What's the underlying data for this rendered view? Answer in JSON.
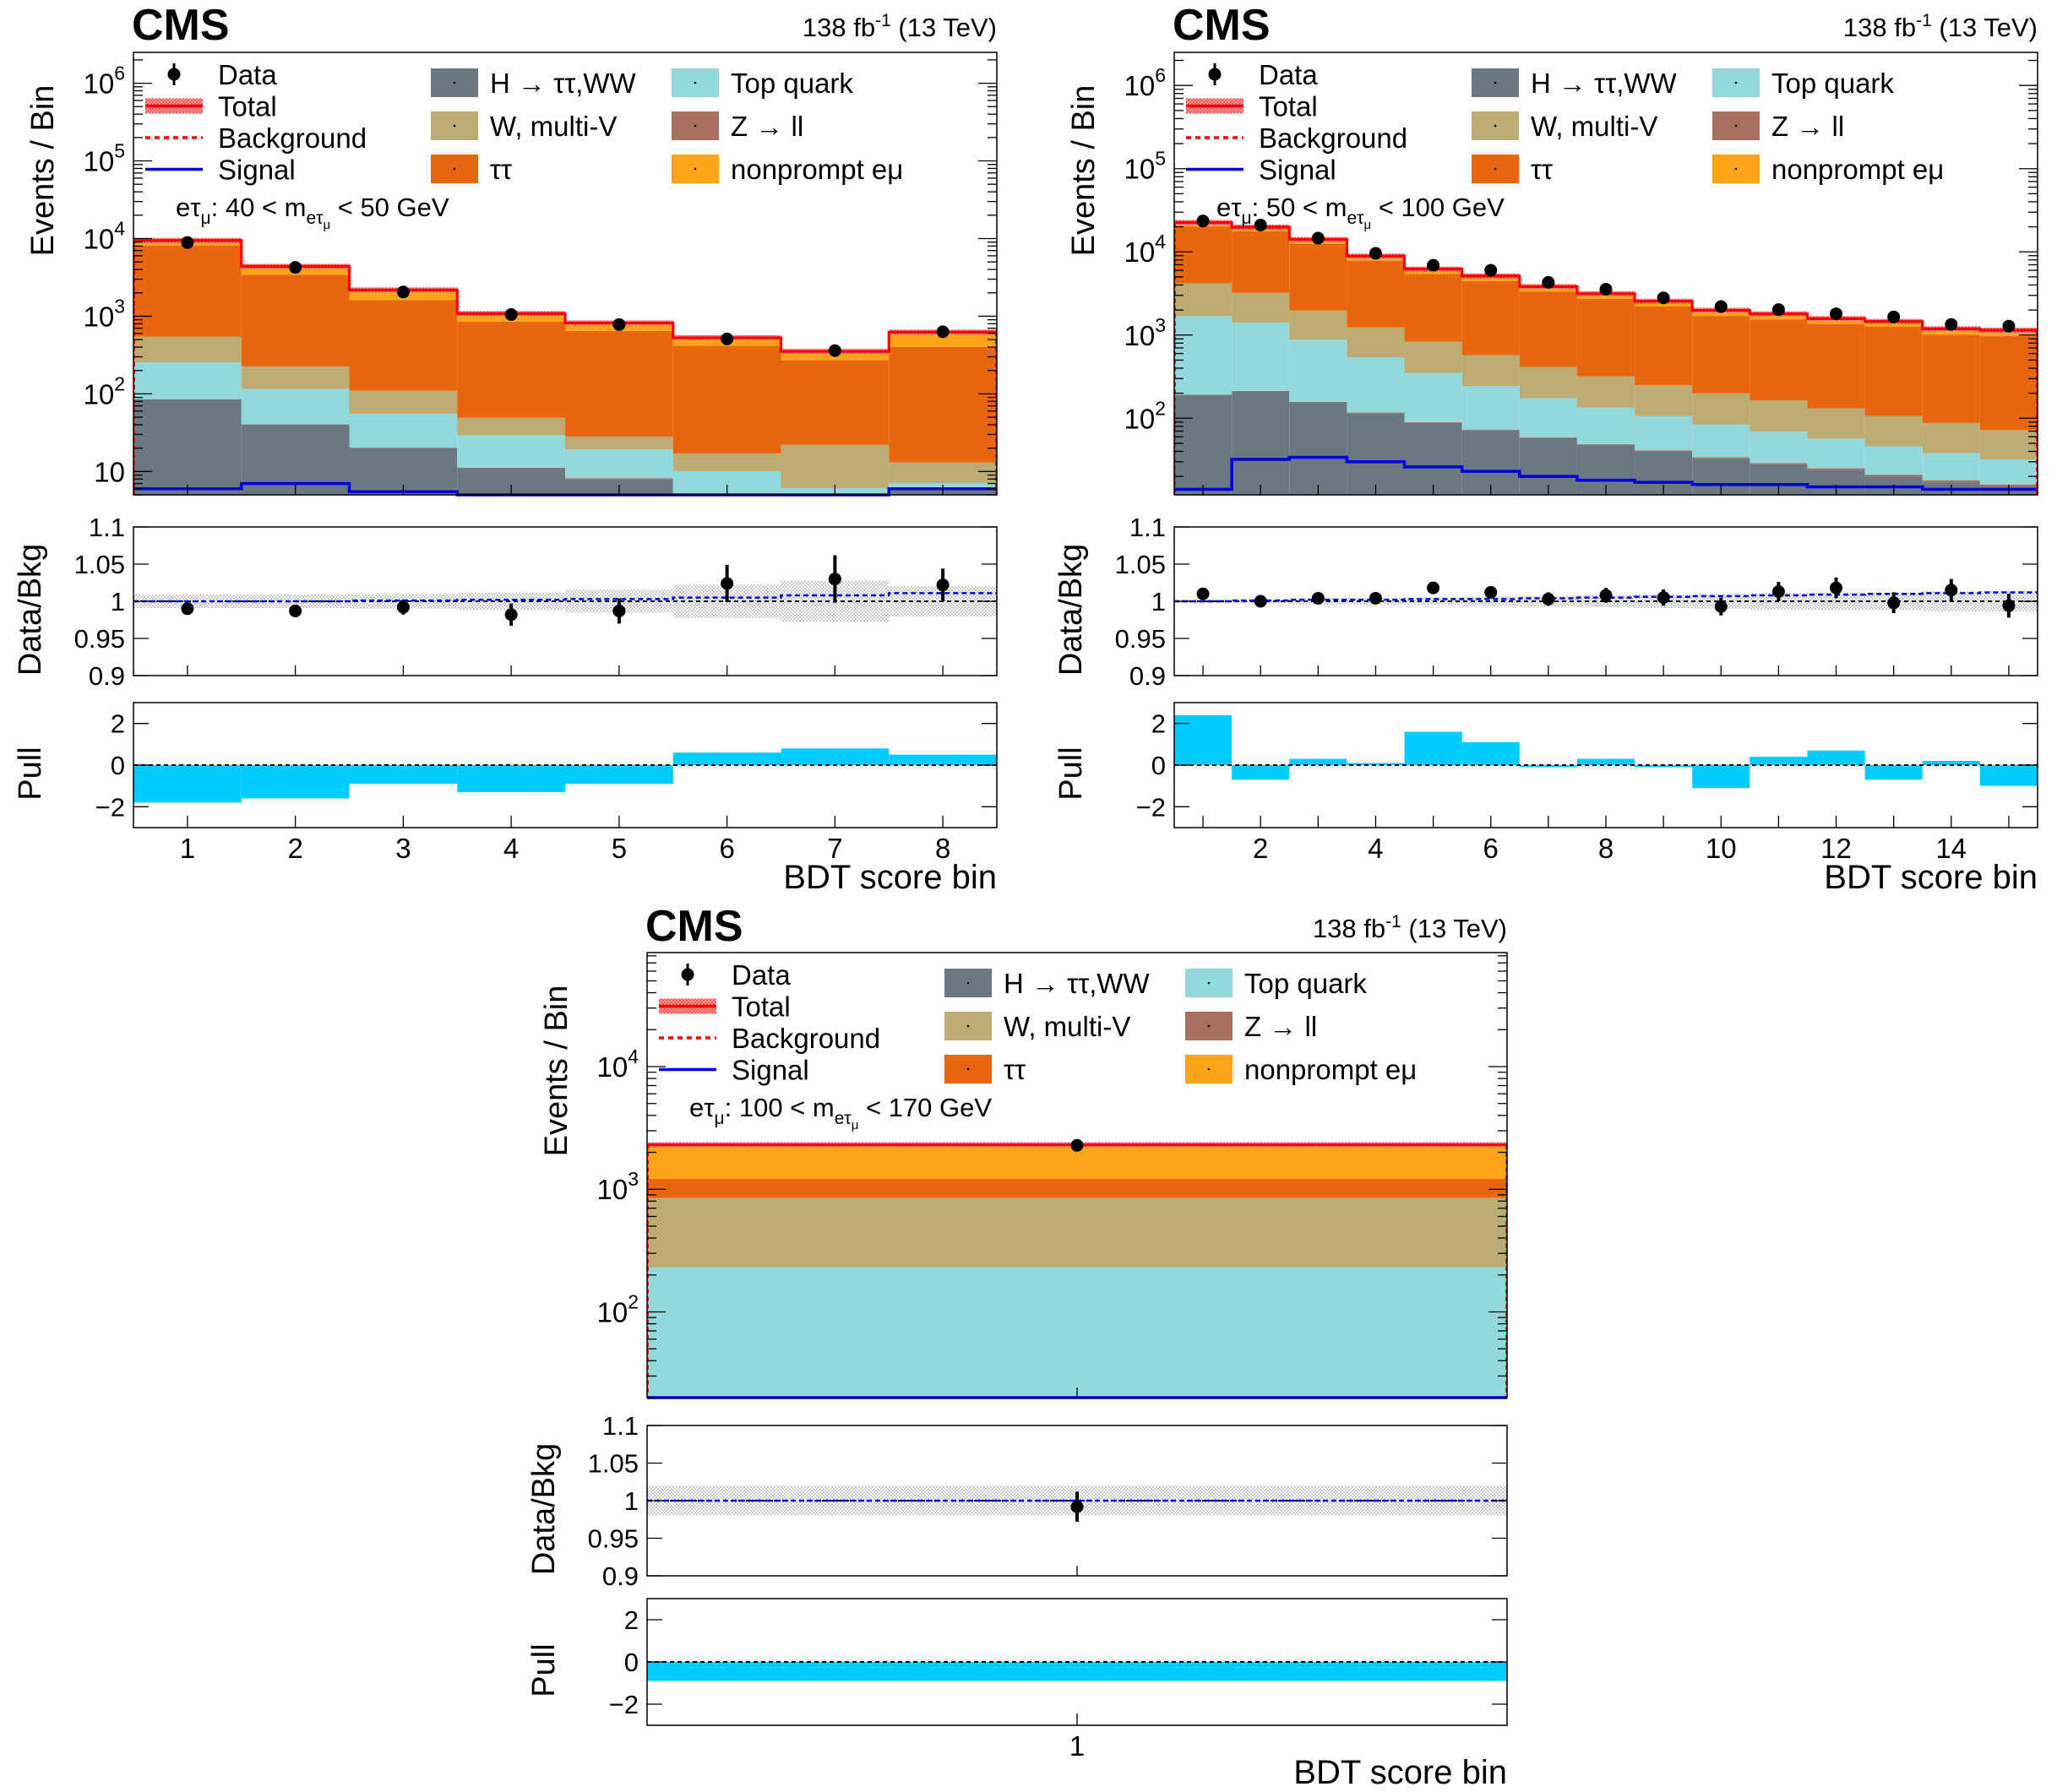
{
  "figure": {
    "experiment": "CMS",
    "lumi": "138 fb",
    "lumi_exp": "-1",
    "energy": " (13 TeV)"
  },
  "legend": {
    "left": [
      {
        "key": "data",
        "label": "Data"
      },
      {
        "key": "total",
        "label": "Total"
      },
      {
        "key": "background",
        "label": "Background"
      },
      {
        "key": "signal",
        "label": "Signal"
      }
    ],
    "mid": [
      {
        "key": "htt",
        "label": "H → ττ,WW"
      },
      {
        "key": "wmv",
        "label": "W, multi-V"
      },
      {
        "key": "tt",
        "label": "ττ"
      }
    ],
    "right": [
      {
        "key": "top",
        "label": "Top quark"
      },
      {
        "key": "zll",
        "label": "Z → ll"
      },
      {
        "key": "np",
        "label": "nonprompt eμ"
      }
    ]
  },
  "colors": {
    "htt": "#6b7781",
    "wmv": "#bcab72",
    "tt": "#e8670e",
    "top": "#93d9dc",
    "zll": "#a96f5f",
    "np": "#fea417",
    "total": "#ff0000",
    "signal": "#0000dd",
    "pull": "#00ccff",
    "unc_band": "#c8c8c8"
  },
  "chart_data": [
    {
      "type": "bar",
      "stacked": true,
      "category": "eτμ: 40 < m(eτμ) < 50 GeV",
      "category_text": {
        "pre": "eτ",
        "sub1": "μ",
        "mid": ": 40 < m",
        "sub2": "eτ",
        "sub3": "μ",
        "post": " < 50 GeV"
      },
      "xlabel": "BDT score bin",
      "ylabel_main": "Events / Bin",
      "ylabel_ratio": "Data/Bkg",
      "ylabel_pull": "Pull",
      "x_bins": [
        1,
        2,
        3,
        4,
        5,
        6,
        7,
        8
      ],
      "x_ticks": [
        1,
        2,
        3,
        4,
        5,
        6,
        7,
        8
      ],
      "ylim_main": [
        5,
        2500000
      ],
      "ylog": true,
      "y_ticks_main": [
        {
          "v": 10,
          "b": "10",
          "e": ""
        },
        {
          "v": 100,
          "b": "10",
          "e": "2"
        },
        {
          "v": 1000,
          "b": "10",
          "e": "3"
        },
        {
          "v": 10000,
          "b": "10",
          "e": "4"
        },
        {
          "v": 100000,
          "b": "10",
          "e": "5"
        },
        {
          "v": 1000000,
          "b": "10",
          "e": "6"
        }
      ],
      "series": [
        {
          "key": "htt",
          "name": "H → ττ,WW",
          "values": [
            85,
            40,
            20,
            11,
            8,
            5,
            4,
            6
          ]
        },
        {
          "key": "zll",
          "name": "Z → ll",
          "values": [
            0.5,
            0.4,
            0.3,
            0.2,
            0.2,
            0.1,
            0.1,
            0.1
          ]
        },
        {
          "key": "top",
          "name": "Top quark",
          "values": [
            170,
            75,
            35,
            18,
            11,
            5,
            2,
            1
          ]
        },
        {
          "key": "wmv",
          "name": "W, multi-V",
          "values": [
            290,
            110,
            55,
            20,
            9,
            7,
            16,
            6
          ]
        },
        {
          "key": "tt",
          "name": "ττ",
          "values": [
            7600,
            3200,
            1500,
            800,
            620,
            400,
            250,
            390
          ]
        },
        {
          "key": "np",
          "name": "nonprompt eμ",
          "values": [
            1300,
            950,
            560,
            230,
            170,
            110,
            80,
            220
          ]
        }
      ],
      "data": [
        8900,
        4250,
        2050,
        1050,
        780,
        510,
        360,
        630
      ],
      "signal": [
        6,
        7,
        5.5,
        4.5,
        4,
        3.5,
        3.5,
        6
      ],
      "ratio": {
        "ylim": [
          0.9,
          1.1
        ],
        "ticks": [
          0.9,
          0.95,
          1,
          1.05,
          1.1
        ],
        "tick_labels": [
          "0.9",
          "0.95",
          "1",
          "1.05",
          "1.1"
        ],
        "values": [
          0.99,
          0.987,
          0.992,
          0.982,
          0.987,
          1.024,
          1.03,
          1.022
        ],
        "errors": [
          0.004,
          0.008,
          0.01,
          0.015,
          0.017,
          0.025,
          0.032,
          0.022
        ],
        "band": [
          0.009,
          0.009,
          0.01,
          0.012,
          0.015,
          0.022,
          0.028,
          0.02
        ],
        "signal_line": [
          1.0,
          1.0,
          1.001,
          1.002,
          1.003,
          1.005,
          1.008,
          1.011
        ]
      },
      "pull": {
        "ylim": [
          -3,
          3
        ],
        "ticks": [
          -2,
          0,
          2
        ],
        "tick_labels": [
          "−2",
          "0",
          "2"
        ],
        "values": [
          -1.8,
          -1.6,
          -0.9,
          -1.3,
          -0.9,
          0.6,
          0.8,
          0.5
        ]
      }
    },
    {
      "type": "bar",
      "stacked": true,
      "category": "eτμ: 50 < m(eτμ) < 100 GeV",
      "category_text": {
        "pre": "eτ",
        "sub1": "μ",
        "mid": ": 50 < m",
        "sub2": "eτ",
        "sub3": "μ",
        "post": " < 100 GeV"
      },
      "xlabel": "BDT score bin",
      "ylabel_main": "Events / Bin",
      "ylabel_ratio": "Data/Bkg",
      "ylabel_pull": "Pull",
      "x_bins": [
        1,
        2,
        3,
        4,
        5,
        6,
        7,
        8,
        9,
        10,
        11,
        12,
        13,
        14,
        15
      ],
      "x_ticks": [
        2,
        4,
        6,
        8,
        10,
        12,
        14
      ],
      "ylim_main": [
        12,
        2500000
      ],
      "ylog": true,
      "y_ticks_main": [
        {
          "v": 100,
          "b": "10",
          "e": "2"
        },
        {
          "v": 1000,
          "b": "10",
          "e": "3"
        },
        {
          "v": 10000,
          "b": "10",
          "e": "4"
        },
        {
          "v": 100000,
          "b": "10",
          "e": "5"
        },
        {
          "v": 1000000,
          "b": "10",
          "e": "6"
        }
      ],
      "series": [
        {
          "key": "htt",
          "name": "H → ττ,WW",
          "values": [
            190,
            210,
            155,
            115,
            88,
            72,
            58,
            48,
            40,
            33,
            28,
            24,
            20,
            17,
            15
          ]
        },
        {
          "key": "zll",
          "name": "Z → ll",
          "values": [
            3,
            3,
            2,
            2,
            2,
            1,
            1,
            1,
            1,
            1,
            1,
            1,
            1,
            1,
            1
          ]
        },
        {
          "key": "top",
          "name": "Top quark",
          "values": [
            1500,
            1200,
            720,
            420,
            260,
            170,
            115,
            85,
            65,
            50,
            40,
            32,
            25,
            20,
            16
          ]
        },
        {
          "key": "wmv",
          "name": "W, multi-V",
          "values": [
            2500,
            1800,
            1100,
            700,
            480,
            330,
            240,
            185,
            145,
            115,
            95,
            75,
            60,
            50,
            40
          ]
        },
        {
          "key": "tt",
          "name": "ττ",
          "values": [
            16000,
            14500,
            10500,
            6600,
            4600,
            3900,
            2900,
            2400,
            1950,
            1500,
            1380,
            1220,
            1150,
            920,
            900
          ]
        },
        {
          "key": "np",
          "name": "nonprompt eμ",
          "values": [
            2300,
            2100,
            1600,
            1050,
            780,
            650,
            500,
            420,
            350,
            280,
            250,
            220,
            200,
            180,
            170
          ]
        }
      ],
      "data": [
        23500,
        21000,
        14600,
        9600,
        6900,
        6000,
        4300,
        3550,
        2800,
        2200,
        2020,
        1800,
        1650,
        1340,
        1280
      ],
      "signal": [
        14,
        32,
        34,
        30,
        26,
        23,
        20,
        18,
        17,
        16,
        16,
        15,
        15,
        14,
        14
      ],
      "ratio": {
        "ylim": [
          0.9,
          1.1
        ],
        "ticks": [
          0.9,
          0.95,
          1,
          1.05,
          1.1
        ],
        "tick_labels": [
          "0.9",
          "0.95",
          "1",
          "1.05",
          "1.1"
        ],
        "values": [
          1.01,
          1.0,
          1.004,
          1.004,
          1.018,
          1.012,
          1.003,
          1.008,
          1.005,
          0.993,
          1.013,
          1.018,
          0.998,
          1.015,
          0.994
        ],
        "errors": [
          0.004,
          0.003,
          0.004,
          0.005,
          0.006,
          0.007,
          0.009,
          0.01,
          0.011,
          0.012,
          0.013,
          0.014,
          0.014,
          0.015,
          0.016
        ],
        "band": [
          0.003,
          0.003,
          0.004,
          0.004,
          0.005,
          0.006,
          0.007,
          0.008,
          0.009,
          0.01,
          0.011,
          0.012,
          0.012,
          0.013,
          0.014
        ],
        "signal_line": [
          1.0,
          1.001,
          1.002,
          1.002,
          1.003,
          1.003,
          1.004,
          1.005,
          1.006,
          1.007,
          1.008,
          1.009,
          1.01,
          1.011,
          1.012
        ]
      },
      "pull": {
        "ylim": [
          -3,
          3
        ],
        "ticks": [
          -2,
          0,
          2
        ],
        "tick_labels": [
          "−2",
          "0",
          "2"
        ],
        "values": [
          2.4,
          -0.7,
          0.3,
          0.1,
          1.6,
          1.1,
          -0.1,
          0.3,
          -0.1,
          -1.1,
          0.4,
          0.7,
          -0.7,
          0.2,
          -1.0
        ]
      }
    },
    {
      "type": "bar",
      "stacked": true,
      "category": "eτμ: 100 < m(eτμ) < 170 GeV",
      "category_text": {
        "pre": "eτ",
        "sub1": "μ",
        "mid": ": 100 < m",
        "sub2": "eτ",
        "sub3": "μ",
        "post": " < 170 GeV"
      },
      "xlabel": "BDT score bin",
      "ylabel_main": "Events / Bin",
      "ylabel_ratio": "Data/Bkg",
      "ylabel_pull": "Pull",
      "x_bins": [
        1
      ],
      "x_ticks": [
        1
      ],
      "ylim_main": [
        20,
        85000
      ],
      "ylog": true,
      "y_ticks_main": [
        {
          "v": 100,
          "b": "10",
          "e": "2"
        },
        {
          "v": 1000,
          "b": "10",
          "e": "3"
        },
        {
          "v": 10000,
          "b": "10",
          "e": "4"
        }
      ],
      "series": [
        {
          "key": "htt",
          "name": "H → ττ,WW",
          "values": [
            0.5
          ]
        },
        {
          "key": "zll",
          "name": "Z → ll",
          "values": [
            0.5
          ]
        },
        {
          "key": "top",
          "name": "Top quark",
          "values": [
            230
          ]
        },
        {
          "key": "wmv",
          "name": "W, multi-V",
          "values": [
            620
          ]
        },
        {
          "key": "tt",
          "name": "ττ",
          "values": [
            370
          ]
        },
        {
          "key": "np",
          "name": "nonprompt eμ",
          "values": [
            1080
          ]
        }
      ],
      "data": [
        2280
      ],
      "signal": [
        20
      ],
      "ratio": {
        "ylim": [
          0.9,
          1.1
        ],
        "ticks": [
          0.9,
          0.95,
          1,
          1.05,
          1.1
        ],
        "tick_labels": [
          "0.9",
          "0.95",
          "1",
          "1.05",
          "1.1"
        ],
        "values": [
          0.992
        ],
        "errors": [
          0.02
        ],
        "band": [
          0.02
        ],
        "signal_line": [
          1.0
        ]
      },
      "pull": {
        "ylim": [
          -3,
          3
        ],
        "ticks": [
          -2,
          0,
          2
        ],
        "tick_labels": [
          "−2",
          "0",
          "2"
        ],
        "values": [
          -0.9
        ]
      }
    }
  ]
}
